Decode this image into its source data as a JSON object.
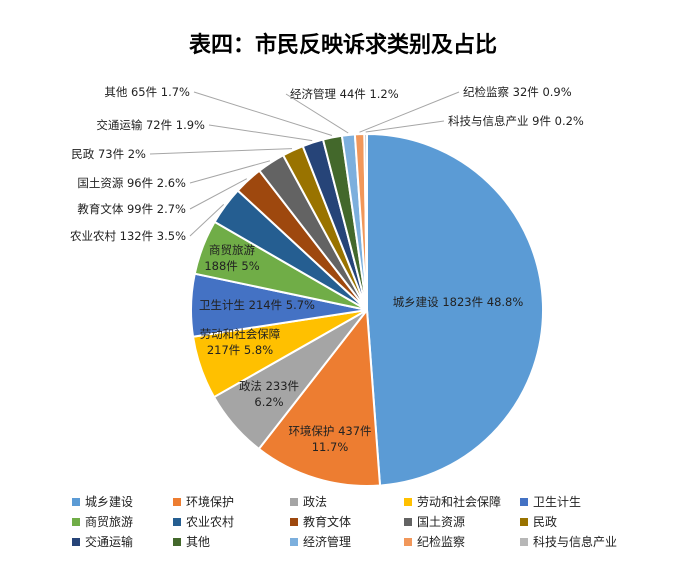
{
  "chart_data": {
    "type": "pie",
    "title": "表四：市民反映诉求类别及占比",
    "legend_position": "bottom",
    "slices": [
      {
        "name": "城乡建设",
        "value": 1823,
        "percent": "48.8%",
        "color": "#5b9bd5"
      },
      {
        "name": "环境保护",
        "value": 437,
        "percent": "11.7%",
        "color": "#ed7d31"
      },
      {
        "name": "政法",
        "value": 233,
        "percent": "6.2%",
        "color": "#a5a5a5"
      },
      {
        "name": "劳动和社会保障",
        "value": 217,
        "percent": "5.8%",
        "color": "#ffc000"
      },
      {
        "name": "卫生计生",
        "value": 214,
        "percent": "5.7%",
        "color": "#4472c4"
      },
      {
        "name": "商贸旅游",
        "value": 188,
        "percent": "5%",
        "color": "#70ad47"
      },
      {
        "name": "农业农村",
        "value": 132,
        "percent": "3.5%",
        "color": "#255e91"
      },
      {
        "name": "教育文体",
        "value": 99,
        "percent": "2.7%",
        "color": "#9e480e"
      },
      {
        "name": "国土资源",
        "value": 96,
        "percent": "2.6%",
        "color": "#636363"
      },
      {
        "name": "民政",
        "value": 73,
        "percent": "2%",
        "color": "#997300"
      },
      {
        "name": "交通运输",
        "value": 72,
        "percent": "1.9%",
        "color": "#264478"
      },
      {
        "name": "其他",
        "value": 65,
        "percent": "1.7%",
        "color": "#43682b"
      },
      {
        "name": "经济管理",
        "value": 44,
        "percent": "1.2%",
        "color": "#7cafdd"
      },
      {
        "name": "纪检监察",
        "value": 32,
        "percent": "0.9%",
        "color": "#f1975a"
      },
      {
        "name": "科技与信息产业",
        "value": 9,
        "percent": "0.2%",
        "color": "#b7b7b7"
      }
    ],
    "unit": "件"
  }
}
